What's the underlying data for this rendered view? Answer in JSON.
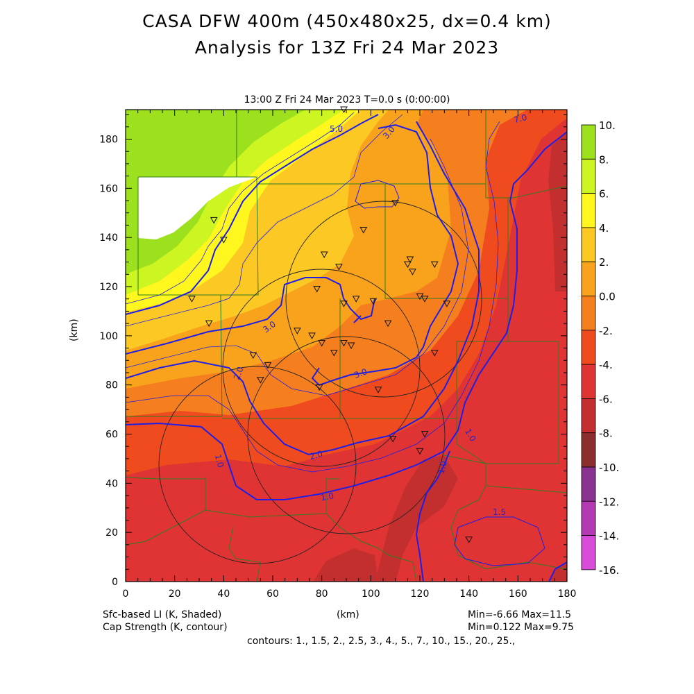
{
  "header": {
    "title_line1": "CASA DFW 400m (450x480x25, dx=0.4 km)",
    "title_line2": "Analysis for 13Z Fri 24 Mar 2023",
    "subtitle": "13:00 Z Fri 24 Mar 2023    T=0.0 s (0:00:00)"
  },
  "axes": {
    "xlabel": "(km)",
    "ylabel": "(km)",
    "x_ticks": [
      "0",
      "20",
      "40",
      "60",
      "80",
      "100",
      "120",
      "140",
      "160",
      "180"
    ],
    "y_ticks": [
      "0",
      "20",
      "40",
      "60",
      "80",
      "100",
      "120",
      "140",
      "160",
      "180"
    ],
    "x_range": [
      0,
      180
    ],
    "y_range": [
      0,
      192
    ]
  },
  "colorbar": {
    "labels": [
      "10.",
      "8.",
      "6.",
      "4.",
      "2.",
      "0.0",
      "-2.",
      "-4.",
      "-6.",
      "-8.",
      "-10.",
      "-12.",
      "-14.",
      "-16."
    ],
    "colors": [
      "#9de11e",
      "#ccf521",
      "#fff71e",
      "#fcc824",
      "#f9a21b",
      "#f57f1e",
      "#ef4b1f",
      "#e03434",
      "#c32f2f",
      "#8c2e2e",
      "#8a3390",
      "#b43ab4",
      "#d94cd9"
    ]
  },
  "footer": {
    "left1": "Sfc-based LI (K, Shaded)",
    "left2": "Cap Strength (K, contour)",
    "right1": "Min=-6.66 Max=11.5",
    "right2": "Min=0.122 Max=9.75",
    "contours": "contours: 1., 1.5, 2., 2.5, 3., 4., 5., 7., 10., 15., 20., 25.,"
  },
  "contour_labels": [
    "5.0",
    "3.0",
    "3.0",
    "2.0",
    "3.0",
    "2.0",
    "1.0",
    "1.0",
    "1.0",
    "1.0",
    "1.5",
    "7.0"
  ],
  "colors": {
    "contour": "#1e1ee6",
    "county_lines": "#2e7d1e",
    "frame": "#000000"
  }
}
